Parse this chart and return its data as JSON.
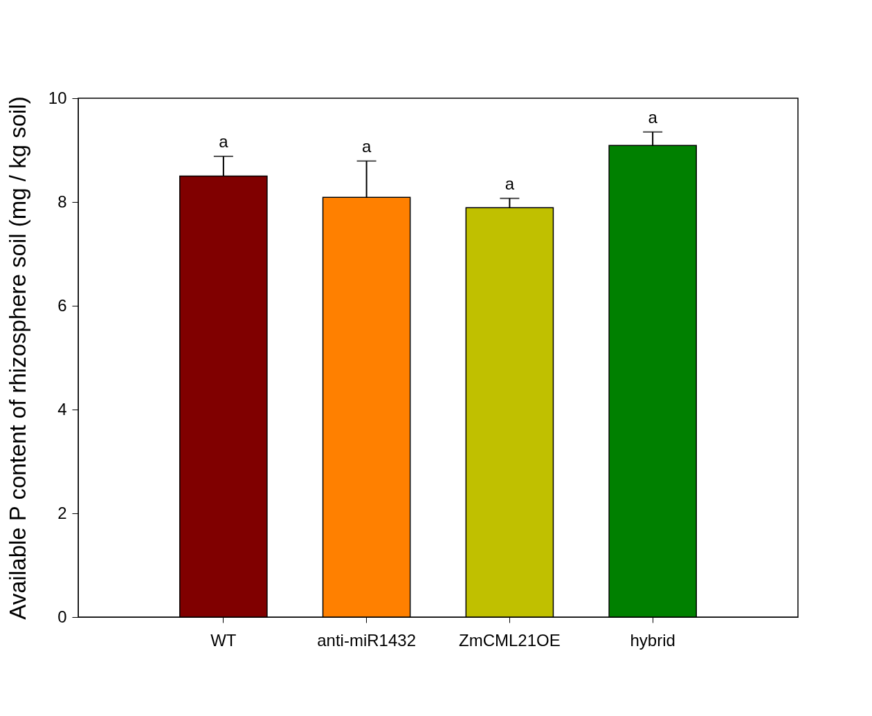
{
  "chart_data": {
    "type": "bar",
    "ylabel": "Available P content of rhizosphere soil (mg / kg soil)",
    "categories": [
      "WT",
      "anti-miR1432",
      "ZmCML21OE",
      "hybrid"
    ],
    "values": [
      8.5,
      8.09,
      7.89,
      9.09
    ],
    "errors": [
      0.38,
      0.7,
      0.18,
      0.26
    ],
    "colors": [
      "#800000",
      "#ff8000",
      "#c0c000",
      "#008000"
    ],
    "ylim": [
      0,
      10
    ],
    "yticks": [
      0,
      2,
      4,
      6,
      8,
      10
    ],
    "grid": false,
    "annotations": [
      {
        "text": "a",
        "x": "WT",
        "y": 8.88
      },
      {
        "text": "a",
        "x": "anti-miR1432",
        "y": 8.79
      },
      {
        "text": "a",
        "x": "ZmCML21OE",
        "y": 8.07
      },
      {
        "text": "a",
        "x": "hybrid",
        "y": 9.35
      }
    ]
  }
}
